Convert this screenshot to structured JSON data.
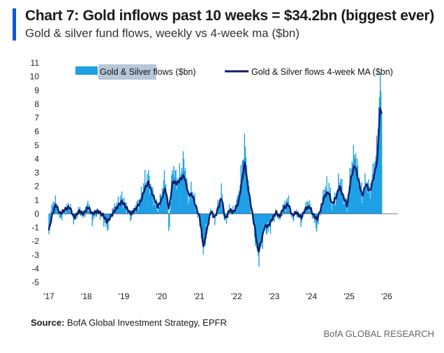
{
  "header": {
    "title": "Chart 7: Gold inflows past 10 weeks = $34.2bn (biggest ever)",
    "subtitle": "Gold & silver fund flows, weekly vs 4-week ma ($bn)"
  },
  "footer": {
    "source_label": "Source:",
    "source_text": " BofA Global Investment Strategy, EPFR",
    "brand": "BofA GLOBAL RESEARCH"
  },
  "colors": {
    "accent": "#0a58d6",
    "bars": "#1fa0e6",
    "ma_line": "#0d1f6b",
    "legend_highlight": "#b8c7d9"
  },
  "chart_data": {
    "type": "bar+line",
    "ylim": [
      -5,
      11
    ],
    "y_ticks": [
      "11",
      "10",
      "9",
      "8",
      "7",
      "6",
      "5",
      "4",
      "3",
      "2",
      "1",
      "0",
      "-1",
      "-2",
      "-3",
      "-4",
      "-5"
    ],
    "x_ticks": [
      "'17",
      "'18",
      "'19",
      "'20",
      "'21",
      "'22",
      "'23",
      "'24",
      "'25",
      "'26"
    ],
    "x_range": [
      2017,
      2026.3
    ],
    "legend": {
      "position": "top",
      "items": [
        {
          "label": "Gold & Silver flows ($bn)",
          "kind": "bar"
        },
        {
          "label": "Gold & Silver flows 4-week MA ($bn)",
          "kind": "line"
        }
      ]
    },
    "series": [
      {
        "name": "Gold & Silver flows ($bn)",
        "kind": "bar",
        "keypoints": [
          [
            2017.0,
            -1.5
          ],
          [
            2017.08,
            0.6
          ],
          [
            2017.18,
            0.9
          ],
          [
            2017.3,
            -0.4
          ],
          [
            2017.42,
            0.3
          ],
          [
            2017.55,
            0.6
          ],
          [
            2017.68,
            -0.6
          ],
          [
            2017.8,
            0.4
          ],
          [
            2017.92,
            -0.3
          ],
          [
            2018.05,
            0.9
          ],
          [
            2018.15,
            -0.5
          ],
          [
            2018.3,
            0.2
          ],
          [
            2018.45,
            -0.4
          ],
          [
            2018.55,
            -1.0
          ],
          [
            2018.7,
            0.3
          ],
          [
            2018.85,
            0.8
          ],
          [
            2018.95,
            1.2
          ],
          [
            2019.05,
            0.6
          ],
          [
            2019.18,
            -0.3
          ],
          [
            2019.3,
            0.4
          ],
          [
            2019.45,
            1.2
          ],
          [
            2019.55,
            2.4
          ],
          [
            2019.65,
            2.7
          ],
          [
            2019.78,
            1.2
          ],
          [
            2019.9,
            0.3
          ],
          [
            2020.0,
            1.4
          ],
          [
            2020.1,
            2.8
          ],
          [
            2020.2,
            -1.3
          ],
          [
            2020.3,
            3.6
          ],
          [
            2020.4,
            2.4
          ],
          [
            2020.5,
            2.9
          ],
          [
            2020.6,
            4.0
          ],
          [
            2020.72,
            1.0
          ],
          [
            2020.82,
            1.8
          ],
          [
            2020.92,
            0.4
          ],
          [
            2021.02,
            -0.6
          ],
          [
            2021.12,
            -2.6
          ],
          [
            2021.22,
            -1.2
          ],
          [
            2021.32,
            0.4
          ],
          [
            2021.42,
            -0.6
          ],
          [
            2021.52,
            0.8
          ],
          [
            2021.6,
            1.6
          ],
          [
            2021.7,
            -0.8
          ],
          [
            2021.82,
            0.4
          ],
          [
            2021.92,
            0.2
          ],
          [
            2022.05,
            1.2
          ],
          [
            2022.15,
            3.6
          ],
          [
            2022.22,
            5.3
          ],
          [
            2022.3,
            2.2
          ],
          [
            2022.38,
            0.6
          ],
          [
            2022.48,
            -1.4
          ],
          [
            2022.58,
            -3.2
          ],
          [
            2022.66,
            -2.2
          ],
          [
            2022.75,
            -1.0
          ],
          [
            2022.85,
            -1.2
          ],
          [
            2022.95,
            -0.6
          ],
          [
            2023.05,
            0.2
          ],
          [
            2023.15,
            -0.4
          ],
          [
            2023.25,
            0.6
          ],
          [
            2023.38,
            1.0
          ],
          [
            2023.48,
            -0.4
          ],
          [
            2023.6,
            0.2
          ],
          [
            2023.72,
            -0.6
          ],
          [
            2023.85,
            0.6
          ],
          [
            2023.95,
            0.8
          ],
          [
            2024.05,
            -0.4
          ],
          [
            2024.15,
            -1.0
          ],
          [
            2024.25,
            0.6
          ],
          [
            2024.35,
            1.8
          ],
          [
            2024.45,
            2.1
          ],
          [
            2024.55,
            0.6
          ],
          [
            2024.65,
            1.4
          ],
          [
            2024.75,
            2.6
          ],
          [
            2024.85,
            1.2
          ],
          [
            2024.95,
            0.6
          ],
          [
            2025.05,
            3.4
          ],
          [
            2025.15,
            4.6
          ],
          [
            2025.25,
            2.8
          ],
          [
            2025.35,
            1.2
          ],
          [
            2025.45,
            2.4
          ],
          [
            2025.55,
            1.6
          ],
          [
            2025.65,
            3.2
          ],
          [
            2025.75,
            5.2
          ],
          [
            2025.82,
            9.8
          ],
          [
            2025.87,
            7.8
          ]
        ]
      },
      {
        "name": "Gold & Silver flows 4-week MA ($bn)",
        "kind": "line",
        "keypoints": [
          [
            2017.0,
            -1.2
          ],
          [
            2017.08,
            -0.2
          ],
          [
            2017.18,
            0.7
          ],
          [
            2017.3,
            0.0
          ],
          [
            2017.42,
            0.3
          ],
          [
            2017.55,
            0.5
          ],
          [
            2017.68,
            -0.3
          ],
          [
            2017.8,
            0.2
          ],
          [
            2017.92,
            0.0
          ],
          [
            2018.05,
            0.5
          ],
          [
            2018.15,
            0.0
          ],
          [
            2018.3,
            0.2
          ],
          [
            2018.45,
            -0.1
          ],
          [
            2018.55,
            -0.6
          ],
          [
            2018.7,
            0.0
          ],
          [
            2018.85,
            0.6
          ],
          [
            2018.95,
            0.9
          ],
          [
            2019.05,
            0.5
          ],
          [
            2019.18,
            0.0
          ],
          [
            2019.3,
            0.3
          ],
          [
            2019.45,
            0.9
          ],
          [
            2019.55,
            1.8
          ],
          [
            2019.65,
            2.3
          ],
          [
            2019.78,
            1.3
          ],
          [
            2019.9,
            0.5
          ],
          [
            2020.0,
            1.0
          ],
          [
            2020.1,
            1.9
          ],
          [
            2020.2,
            0.3
          ],
          [
            2020.3,
            2.4
          ],
          [
            2020.4,
            2.2
          ],
          [
            2020.5,
            2.5
          ],
          [
            2020.6,
            2.8
          ],
          [
            2020.72,
            1.4
          ],
          [
            2020.82,
            1.4
          ],
          [
            2020.92,
            0.5
          ],
          [
            2021.02,
            -0.3
          ],
          [
            2021.12,
            -2.4
          ],
          [
            2021.22,
            -1.0
          ],
          [
            2021.32,
            0.2
          ],
          [
            2021.42,
            -0.3
          ],
          [
            2021.52,
            0.5
          ],
          [
            2021.6,
            1.2
          ],
          [
            2021.7,
            -0.4
          ],
          [
            2021.82,
            0.3
          ],
          [
            2021.92,
            0.1
          ],
          [
            2022.05,
            0.8
          ],
          [
            2022.15,
            2.5
          ],
          [
            2022.22,
            3.8
          ],
          [
            2022.3,
            2.0
          ],
          [
            2022.38,
            0.7
          ],
          [
            2022.48,
            -0.9
          ],
          [
            2022.58,
            -2.8
          ],
          [
            2022.66,
            -2.0
          ],
          [
            2022.75,
            -0.9
          ],
          [
            2022.85,
            -0.9
          ],
          [
            2022.95,
            -0.4
          ],
          [
            2023.05,
            0.1
          ],
          [
            2023.15,
            -0.2
          ],
          [
            2023.25,
            0.4
          ],
          [
            2023.38,
            0.7
          ],
          [
            2023.48,
            -0.1
          ],
          [
            2023.6,
            0.1
          ],
          [
            2023.72,
            -0.3
          ],
          [
            2023.85,
            0.4
          ],
          [
            2023.95,
            0.5
          ],
          [
            2024.05,
            -0.1
          ],
          [
            2024.15,
            -0.4
          ],
          [
            2024.25,
            0.4
          ],
          [
            2024.35,
            1.3
          ],
          [
            2024.45,
            1.6
          ],
          [
            2024.55,
            0.7
          ],
          [
            2024.65,
            1.2
          ],
          [
            2024.75,
            2.0
          ],
          [
            2024.85,
            1.2
          ],
          [
            2024.95,
            0.6
          ],
          [
            2025.05,
            2.6
          ],
          [
            2025.15,
            3.6
          ],
          [
            2025.25,
            2.4
          ],
          [
            2025.35,
            1.3
          ],
          [
            2025.45,
            2.2
          ],
          [
            2025.55,
            1.6
          ],
          [
            2025.65,
            2.6
          ],
          [
            2025.75,
            3.9
          ],
          [
            2025.82,
            7.6
          ],
          [
            2025.87,
            7.4
          ]
        ]
      }
    ]
  }
}
